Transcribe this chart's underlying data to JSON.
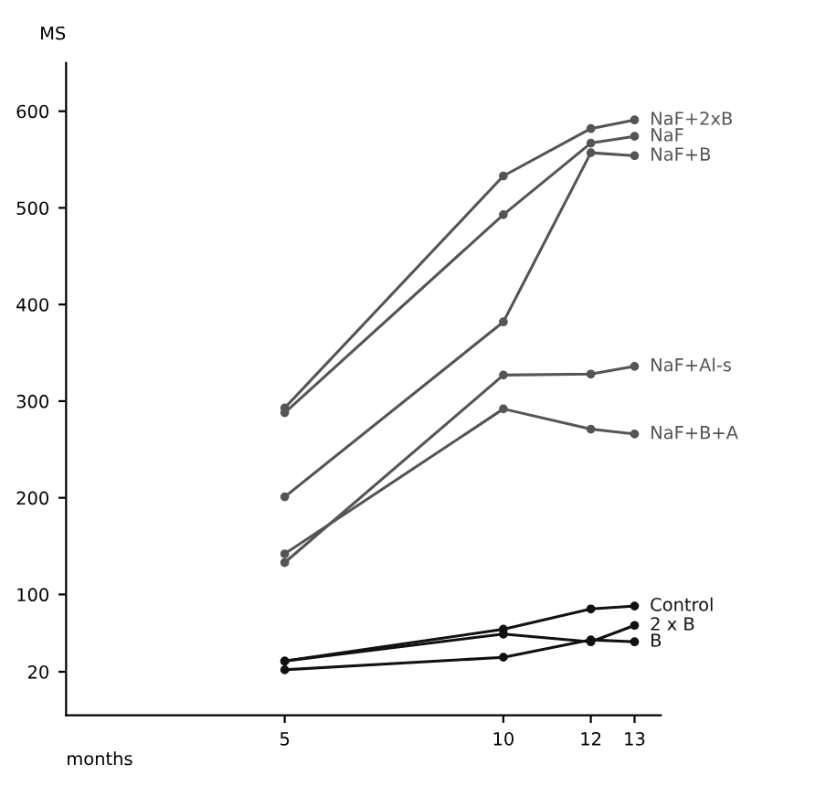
{
  "chart_data": {
    "type": "line",
    "ylabel": "MS",
    "xlabel": "months",
    "x": [
      5,
      10,
      12,
      13
    ],
    "xlim": [
      0,
      13.6
    ],
    "xticks": [
      5,
      10,
      12,
      13
    ],
    "ylim": [
      -25,
      650
    ],
    "yticks": [
      20,
      100,
      200,
      300,
      400,
      500,
      600
    ],
    "grid": false,
    "legend": false,
    "marker": "circle",
    "line_style": "solid",
    "series": [
      {
        "name": "NaF+2xB",
        "color": "#555555",
        "values": [
          293,
          533,
          582,
          591
        ]
      },
      {
        "name": "NaF",
        "color": "#555555",
        "values": [
          288,
          493,
          567,
          574
        ]
      },
      {
        "name": "NaF+B",
        "color": "#555555",
        "values": [
          201,
          382,
          557,
          554
        ]
      },
      {
        "name": "NaF+Al-s",
        "color": "#555555",
        "values": [
          133,
          327,
          328,
          336
        ]
      },
      {
        "name": "NaF+B+A",
        "color": "#555555",
        "values": [
          142,
          292,
          271,
          266
        ]
      },
      {
        "name": "Control",
        "color": "#111111",
        "values": [
          31,
          64,
          85,
          88
        ]
      },
      {
        "name": "2 x B",
        "color": "#111111",
        "values": [
          31,
          59,
          51,
          68
        ]
      },
      {
        "name": "B",
        "color": "#111111",
        "values": [
          22,
          35,
          53,
          51
        ]
      }
    ]
  }
}
